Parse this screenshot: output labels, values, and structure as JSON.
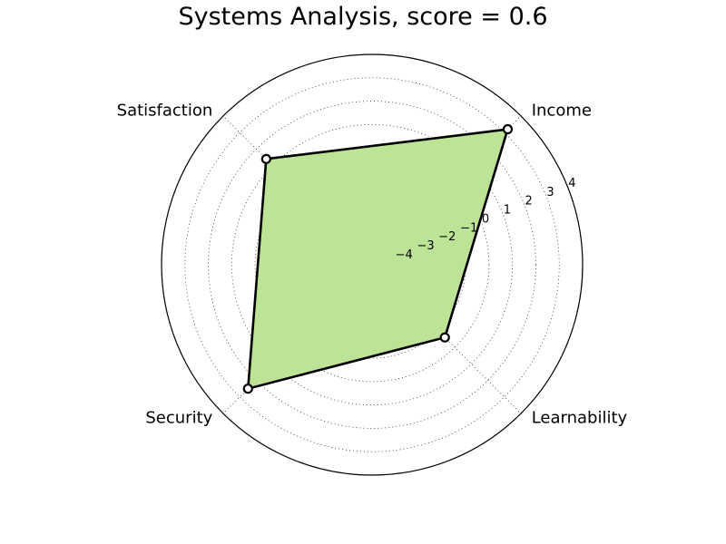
{
  "chart_data": {
    "type": "radar",
    "title": "Systems Analysis, score = 0.6",
    "categories": [
      "Income",
      "Satisfaction",
      "Security",
      "Learnability"
    ],
    "values": [
      3.2,
      1.4,
      2.5,
      -0.6
    ],
    "rlim": [
      -5,
      4
    ],
    "ticks": [
      -4,
      -3,
      -2,
      -1,
      0,
      1,
      2,
      3,
      4
    ],
    "tick_labels": [
      "−4",
      "−3",
      "−2",
      "−1",
      "0",
      "1",
      "2",
      "3",
      "4"
    ],
    "grid": true,
    "fill_color": "#bde396",
    "line_color": "#000000"
  }
}
